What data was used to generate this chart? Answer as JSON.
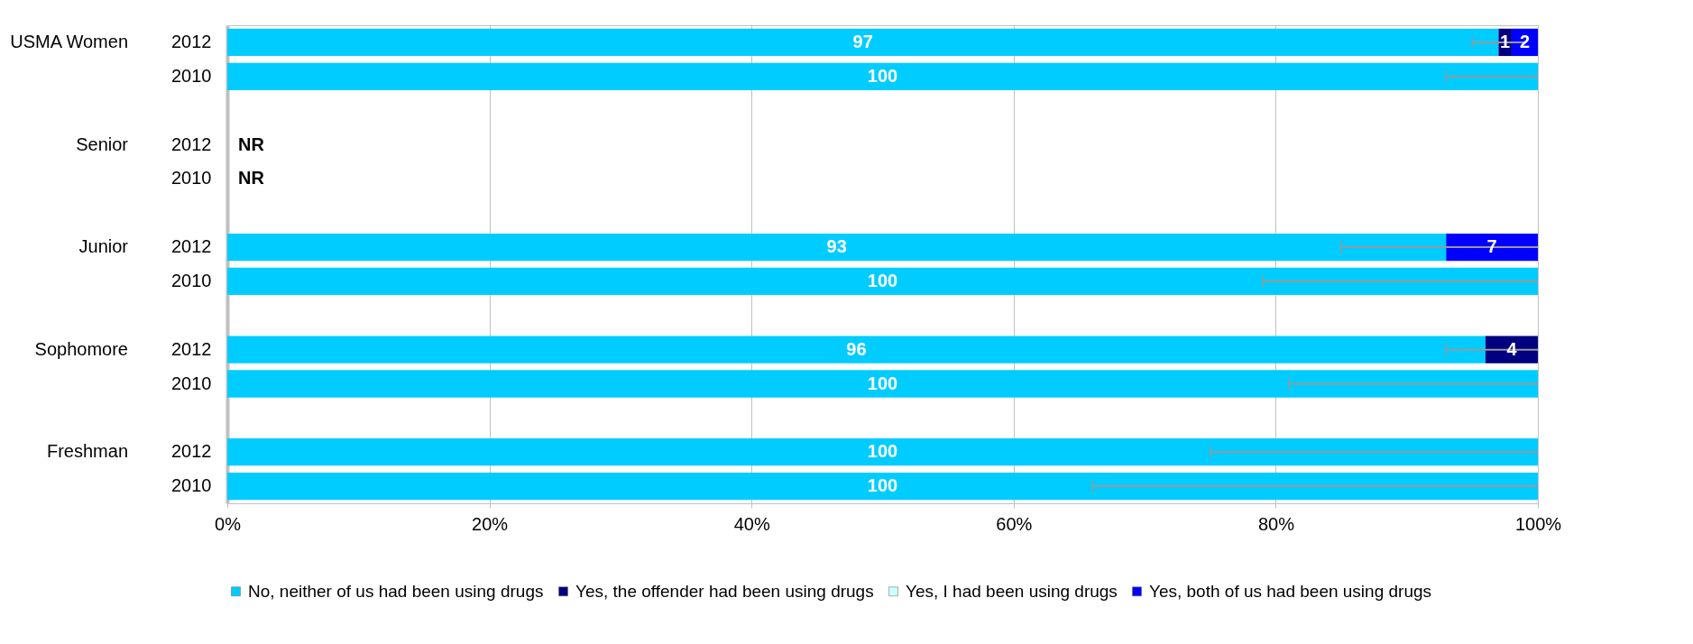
{
  "chart_data": {
    "type": "bar",
    "orientation": "horizontal",
    "stacked": true,
    "categories": [
      "2012",
      "2010",
      null,
      "2012",
      "2010",
      null,
      "2012",
      "2010",
      null,
      "2012",
      "2010",
      null,
      "2012",
      "2010"
    ],
    "annotations": [
      "USMA Women",
      "Senior",
      "Junior",
      "Sophomore",
      "Freshman"
    ],
    "series": [
      {
        "name": "No, neither of us had been using drugs",
        "color": "#00ccff",
        "values": [
          97,
          100,
          null,
          null,
          null,
          null,
          93,
          100,
          null,
          96,
          100,
          null,
          100,
          100
        ],
        "value_labels": [
          "97",
          "100",
          null,
          "NR",
          "NR",
          null,
          "93",
          "100",
          null,
          "96",
          "100",
          null,
          "100",
          "100"
        ],
        "errors": [
          [
            95,
            99
          ],
          [
            93,
            100
          ],
          null,
          null,
          null,
          null,
          [
            85,
            100
          ],
          [
            79,
            100
          ],
          null,
          [
            93,
            100
          ],
          [
            81,
            100
          ],
          null,
          [
            75,
            100
          ],
          [
            66,
            100
          ]
        ]
      },
      {
        "name": "Yes, the offender had been using drugs",
        "color": "#000080",
        "values": [
          1,
          null,
          null,
          null,
          null,
          null,
          null,
          null,
          null,
          4,
          null,
          null,
          null,
          null
        ],
        "value_labels": [
          "1",
          null,
          null,
          null,
          null,
          null,
          null,
          null,
          null,
          "4",
          null,
          null,
          null,
          null
        ]
      },
      {
        "name": "Yes, I had been using drugs",
        "color": "#ccffff",
        "values": [
          null,
          null,
          null,
          null,
          null,
          null,
          null,
          null,
          null,
          null,
          null,
          null,
          null,
          null
        ]
      },
      {
        "name": "Yes, both of us had been using drugs",
        "color": "#0000ff",
        "values": [
          2,
          null,
          null,
          null,
          null,
          null,
          7,
          null,
          null,
          null,
          null,
          null,
          null,
          null
        ],
        "value_labels": [
          "2",
          null,
          null,
          null,
          null,
          null,
          "7",
          null,
          null,
          null,
          null,
          null,
          null,
          null
        ]
      }
    ],
    "xlim": [
      0,
      100
    ],
    "xticks": [
      {
        "value": 0,
        "label": "0%"
      },
      {
        "value": 20,
        "label": "20%"
      },
      {
        "value": 40,
        "label": "40%"
      },
      {
        "value": 60,
        "label": "60%"
      },
      {
        "value": 80,
        "label": "80%"
      },
      {
        "value": 100,
        "label": "100%"
      }
    ],
    "grid": "x",
    "legend": "bottom"
  }
}
